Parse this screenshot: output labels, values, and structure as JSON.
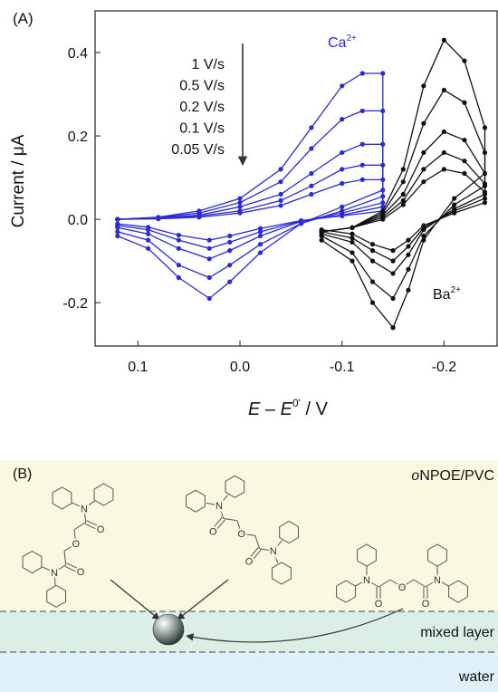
{
  "chart_data": {
    "type": "line",
    "panel_label": "(A)",
    "y_label": "Current / μA",
    "x_label": [
      "E",
      " – ",
      "E",
      "0'",
      " / V"
    ],
    "xlim": [
      0.142,
      -0.252
    ],
    "ylim": [
      -0.304,
      0.5
    ],
    "xticks": [
      0.1,
      {
        "value": 0,
        "label": "0.0"
      },
      -0.1,
      -0.2
    ],
    "yticks": [
      -0.2,
      {
        "value": 0,
        "label": "0.0"
      },
      0.2,
      0.4
    ],
    "markers": true,
    "annotations": {
      "scan_rates": [
        "1 V/s",
        "0.5 V/s",
        "0.2 V/s",
        "0.1 V/s",
        "0.05 V/s"
      ],
      "ca": [
        "Ca",
        "2+"
      ],
      "ba": [
        "Ba",
        "2+"
      ]
    },
    "series": [
      {
        "color": "#2a2ad8",
        "x": [
          0.12,
          0.08,
          0.04,
          0.0,
          -0.04,
          -0.07,
          -0.1,
          -0.12,
          -0.14,
          -0.14,
          -0.1,
          -0.06,
          -0.02,
          0.01,
          0.03,
          0.06,
          0.09,
          0.12
        ],
        "values": [
          0,
          0.005,
          0.02,
          0.05,
          0.12,
          0.22,
          0.32,
          0.35,
          0.35,
          0.07,
          0.03,
          -0.01,
          -0.08,
          -0.15,
          -0.19,
          -0.14,
          -0.07,
          -0.04
        ]
      },
      {
        "color": "#2a2ad8",
        "x": [
          0.12,
          0.08,
          0.04,
          0.0,
          -0.04,
          -0.07,
          -0.1,
          -0.12,
          -0.14,
          -0.14,
          -0.1,
          -0.06,
          -0.02,
          0.01,
          0.03,
          0.06,
          0.09,
          0.12
        ],
        "values": [
          0,
          0.004,
          0.015,
          0.04,
          0.09,
          0.17,
          0.24,
          0.26,
          0.26,
          0.055,
          0.02,
          -0.01,
          -0.06,
          -0.11,
          -0.14,
          -0.11,
          -0.05,
          -0.03
        ]
      },
      {
        "color": "#2a2ad8",
        "x": [
          0.12,
          0.08,
          0.04,
          0.0,
          -0.04,
          -0.07,
          -0.1,
          -0.12,
          -0.14,
          -0.14,
          -0.1,
          -0.06,
          -0.02,
          0.01,
          0.03,
          0.06,
          0.09,
          0.12
        ],
        "values": [
          0,
          0.003,
          0.01,
          0.03,
          0.06,
          0.11,
          0.16,
          0.18,
          0.18,
          0.04,
          0.015,
          -0.005,
          -0.04,
          -0.075,
          -0.095,
          -0.07,
          -0.035,
          -0.02
        ]
      },
      {
        "color": "#2a2ad8",
        "x": [
          0.12,
          0.08,
          0.04,
          0.0,
          -0.04,
          -0.07,
          -0.1,
          -0.12,
          -0.14,
          -0.14,
          -0.1,
          -0.06,
          -0.02,
          0.01,
          0.03,
          0.06,
          0.09,
          0.12
        ],
        "values": [
          0,
          0.002,
          0.008,
          0.02,
          0.045,
          0.08,
          0.12,
          0.13,
          0.13,
          0.03,
          0.01,
          -0.004,
          -0.03,
          -0.055,
          -0.07,
          -0.05,
          -0.025,
          -0.015
        ]
      },
      {
        "color": "#2a2ad8",
        "x": [
          0.12,
          0.08,
          0.04,
          0.0,
          -0.04,
          -0.07,
          -0.1,
          -0.12,
          -0.14,
          -0.14,
          -0.1,
          -0.06,
          -0.02,
          0.01,
          0.03,
          0.06,
          0.09,
          0.12
        ],
        "values": [
          0,
          0.001,
          0.005,
          0.015,
          0.033,
          0.06,
          0.086,
          0.095,
          0.095,
          0.02,
          0.008,
          -0.003,
          -0.022,
          -0.04,
          -0.05,
          -0.038,
          -0.019,
          -0.011
        ]
      },
      {
        "color": "#111111",
        "x": [
          -0.08,
          -0.11,
          -0.14,
          -0.16,
          -0.18,
          -0.2,
          -0.22,
          -0.24,
          -0.24,
          -0.21,
          -0.18,
          -0.165,
          -0.15,
          -0.13,
          -0.11,
          -0.08
        ],
        "values": [
          -0.03,
          -0.02,
          0.02,
          0.12,
          0.32,
          0.43,
          0.38,
          0.22,
          0.11,
          0.05,
          -0.05,
          -0.17,
          -0.26,
          -0.2,
          -0.1,
          -0.05
        ]
      },
      {
        "color": "#111111",
        "x": [
          -0.08,
          -0.11,
          -0.14,
          -0.16,
          -0.18,
          -0.2,
          -0.22,
          -0.24,
          -0.24,
          -0.21,
          -0.18,
          -0.165,
          -0.15,
          -0.13,
          -0.11,
          -0.08
        ],
        "values": [
          -0.03,
          -0.02,
          0.015,
          0.09,
          0.23,
          0.31,
          0.28,
          0.16,
          0.08,
          0.035,
          -0.04,
          -0.12,
          -0.19,
          -0.15,
          -0.08,
          -0.04
        ]
      },
      {
        "color": "#111111",
        "x": [
          -0.08,
          -0.11,
          -0.14,
          -0.16,
          -0.18,
          -0.2,
          -0.22,
          -0.24,
          -0.24,
          -0.21,
          -0.18,
          -0.165,
          -0.15,
          -0.13,
          -0.11,
          -0.08
        ],
        "values": [
          -0.03,
          -0.02,
          0.01,
          0.06,
          0.16,
          0.21,
          0.19,
          0.11,
          0.06,
          0.025,
          -0.025,
          -0.085,
          -0.13,
          -0.1,
          -0.055,
          -0.035
        ]
      },
      {
        "color": "#111111",
        "x": [
          -0.08,
          -0.11,
          -0.14,
          -0.16,
          -0.18,
          -0.2,
          -0.22,
          -0.24,
          -0.24,
          -0.21,
          -0.18,
          -0.165,
          -0.15,
          -0.13,
          -0.11,
          -0.08
        ],
        "values": [
          -0.03,
          -0.02,
          0.005,
          0.045,
          0.12,
          0.16,
          0.14,
          0.085,
          0.05,
          0.02,
          -0.02,
          -0.065,
          -0.1,
          -0.075,
          -0.045,
          -0.03
        ]
      },
      {
        "color": "#111111",
        "x": [
          -0.08,
          -0.11,
          -0.14,
          -0.16,
          -0.18,
          -0.2,
          -0.22,
          -0.24,
          -0.24,
          -0.21,
          -0.18,
          -0.165,
          -0.15,
          -0.13,
          -0.11,
          -0.08
        ],
        "values": [
          -0.03,
          -0.02,
          0.0,
          0.035,
          0.09,
          0.12,
          0.11,
          0.065,
          0.04,
          0.015,
          -0.015,
          -0.05,
          -0.075,
          -0.06,
          -0.035,
          -0.025
        ]
      }
    ]
  },
  "diagram": {
    "panel_label": "(B)",
    "phase_top": [
      "o",
      "NPOE/PVC"
    ],
    "phase_middle": "mixed layer",
    "phase_bottom": "water",
    "molecules": [
      {
        "atoms": [
          "N",
          "O",
          "O",
          "O",
          "N"
        ]
      },
      {
        "atoms": [
          "N",
          "O",
          "O",
          "O",
          "N"
        ]
      },
      {
        "atoms": [
          "N",
          "O",
          "O",
          "O",
          "N"
        ]
      }
    ]
  }
}
